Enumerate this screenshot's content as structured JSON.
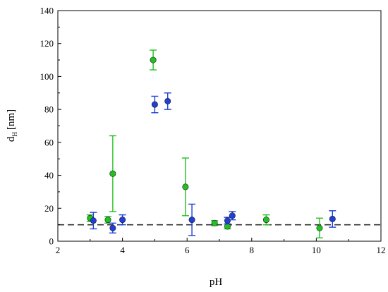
{
  "chart_data": {
    "type": "scatter",
    "xlabel": "pH",
    "ylabel": {
      "main": "d",
      "subscript": "H",
      "unit": "[nm]"
    },
    "xlim": [
      2,
      12
    ],
    "ylim": [
      0,
      140
    ],
    "xticks": [
      "2",
      "4",
      "6",
      "8",
      "10",
      "12"
    ],
    "yticks": [
      "0",
      "20",
      "40",
      "60",
      "80",
      "100",
      "120",
      "140"
    ],
    "grid": false,
    "legend": "none",
    "reference_line": {
      "y": 10,
      "style": "dashed",
      "color": "#333333"
    },
    "series": [
      {
        "color": "#22c022",
        "points": [
          {
            "x": 3.0,
            "y": 14,
            "err": 2
          },
          {
            "x": 3.55,
            "y": 13,
            "err": 2
          },
          {
            "x": 3.7,
            "y": 41,
            "err": 23
          },
          {
            "x": 4.95,
            "y": 110,
            "err": 6
          },
          {
            "x": 5.95,
            "y": 33,
            "err": 17.5
          },
          {
            "x": 6.85,
            "y": 11,
            "err": 1.5
          },
          {
            "x": 7.25,
            "y": 9,
            "err": 1.5
          },
          {
            "x": 8.45,
            "y": 13,
            "err": 3
          },
          {
            "x": 10.1,
            "y": 8,
            "err": 6
          }
        ]
      },
      {
        "color": "#1f3fd6",
        "points": [
          {
            "x": 3.1,
            "y": 12.5,
            "err": 5
          },
          {
            "x": 3.7,
            "y": 8,
            "err": 3
          },
          {
            "x": 4.0,
            "y": 13,
            "err": 3
          },
          {
            "x": 5.0,
            "y": 83,
            "err": 5
          },
          {
            "x": 5.4,
            "y": 85,
            "err": 5
          },
          {
            "x": 6.15,
            "y": 13,
            "err": 9.5
          },
          {
            "x": 7.25,
            "y": 12.5,
            "err": 2
          },
          {
            "x": 7.4,
            "y": 15.5,
            "err": 2.5
          },
          {
            "x": 10.5,
            "y": 13.5,
            "err": 5
          }
        ]
      }
    ]
  }
}
